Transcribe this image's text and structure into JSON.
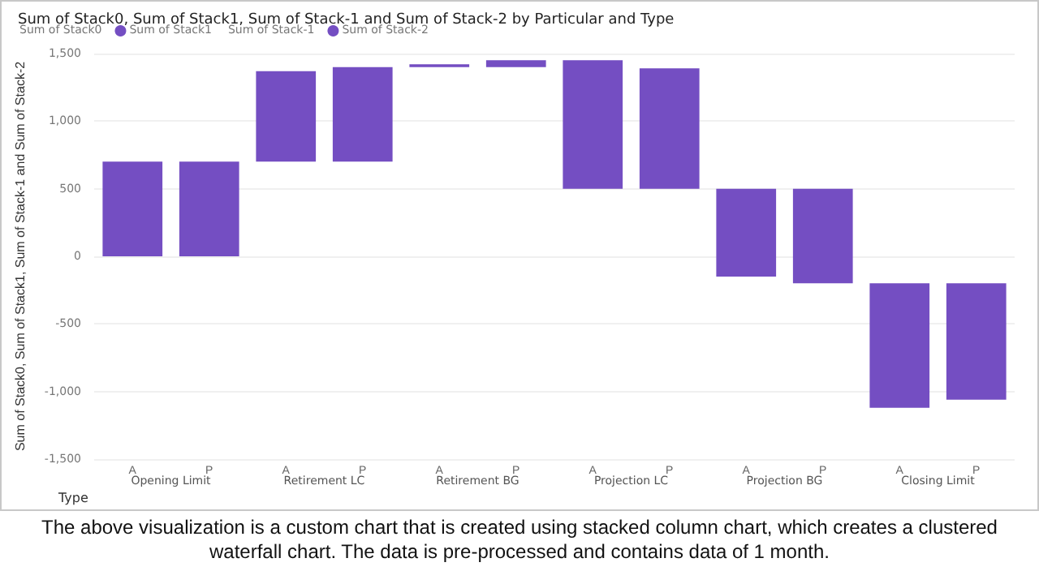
{
  "chart_data": {
    "type": "bar",
    "title": "Sum of Stack0, Sum of Stack1, Sum of Stack-1 and Sum of Stack-2 by Particular and Type",
    "xlabel": "Type",
    "ylabel": "Sum of Stack0, Sum of Stack1, Sum of Stack-1 and Sum of Stack-2",
    "categories": [
      "A",
      "P",
      "A",
      "P",
      "A",
      "P",
      "A",
      "P",
      "A",
      "P",
      "A",
      "P"
    ],
    "series": [
      {
        "name": "Sum of Stack1",
        "color": "#744ec2",
        "base": [
          0,
          0,
          700,
          700,
          1400,
          1400,
          500,
          500,
          0,
          0,
          null,
          null
        ],
        "values": [
          700,
          700,
          670,
          700,
          20,
          50,
          950,
          890,
          500,
          500,
          null,
          null
        ]
      },
      {
        "name": "Sum of Stack-2",
        "color": "#744ec2",
        "base": [
          null,
          null,
          null,
          null,
          null,
          null,
          null,
          null,
          0,
          0,
          -200,
          -200
        ],
        "values": [
          null,
          null,
          null,
          null,
          null,
          null,
          null,
          null,
          -150,
          -200,
          -920,
          -860
        ]
      }
    ],
    "ylim": [
      -1500,
      1500
    ],
    "yticks": [
      {
        "value": -1500,
        "label": "-1,500"
      },
      {
        "value": -1000,
        "label": "-1,000"
      },
      -500,
      0,
      500,
      {
        "value": 1000,
        "label": "1,000"
      },
      {
        "value": 1500,
        "label": "1,500"
      }
    ],
    "grid": "y",
    "legend": "top left",
    "annotations": [
      "Opening Limit",
      "Retirement LC",
      "Retirement BG",
      "Projection LC",
      "Projection BG",
      "Closing Limit",
      "Sum of Stack0",
      "Sum of Stack-1",
      "The above visualization is a custom chart that is created using stacked column chart, which creates a clustered waterfall chart. The data is pre-processed and contains data of 1 month."
    ]
  }
}
